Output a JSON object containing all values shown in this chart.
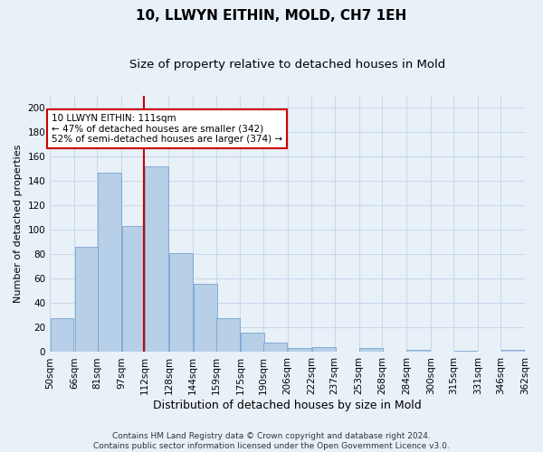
{
  "title": "10, LLWYN EITHIN, MOLD, CH7 1EH",
  "subtitle": "Size of property relative to detached houses in Mold",
  "xlabel": "Distribution of detached houses by size in Mold",
  "ylabel": "Number of detached properties",
  "categories": [
    "50sqm",
    "66sqm",
    "81sqm",
    "97sqm",
    "112sqm",
    "128sqm",
    "144sqm",
    "159sqm",
    "175sqm",
    "190sqm",
    "206sqm",
    "222sqm",
    "237sqm",
    "253sqm",
    "268sqm",
    "284sqm",
    "300sqm",
    "315sqm",
    "331sqm",
    "346sqm",
    "362sqm"
  ],
  "values": [
    28,
    86,
    147,
    103,
    152,
    81,
    56,
    28,
    16,
    8,
    3,
    4,
    0,
    3,
    0,
    2,
    0,
    1,
    0,
    2,
    2
  ],
  "bar_color": "#b8cfe8",
  "bar_edge_color": "#6699cc",
  "grid_color": "#c8d8ea",
  "background_color": "#e8f0f8",
  "vline_x_bin": 4,
  "vline_color": "#cc0000",
  "annotation_text": "10 LLWYN EITHIN: 111sqm\n← 47% of detached houses are smaller (342)\n52% of semi-detached houses are larger (374) →",
  "annotation_box_color": "#ffffff",
  "annotation_box_edge": "#cc0000",
  "ylim": [
    0,
    210
  ],
  "yticks": [
    0,
    20,
    40,
    60,
    80,
    100,
    120,
    140,
    160,
    180,
    200
  ],
  "footer": "Contains HM Land Registry data © Crown copyright and database right 2024.\nContains public sector information licensed under the Open Government Licence v3.0.",
  "title_fontsize": 11,
  "subtitle_fontsize": 9.5,
  "xlabel_fontsize": 9,
  "ylabel_fontsize": 8,
  "tick_fontsize": 7.5,
  "annotation_fontsize": 7.5,
  "footer_fontsize": 6.5
}
